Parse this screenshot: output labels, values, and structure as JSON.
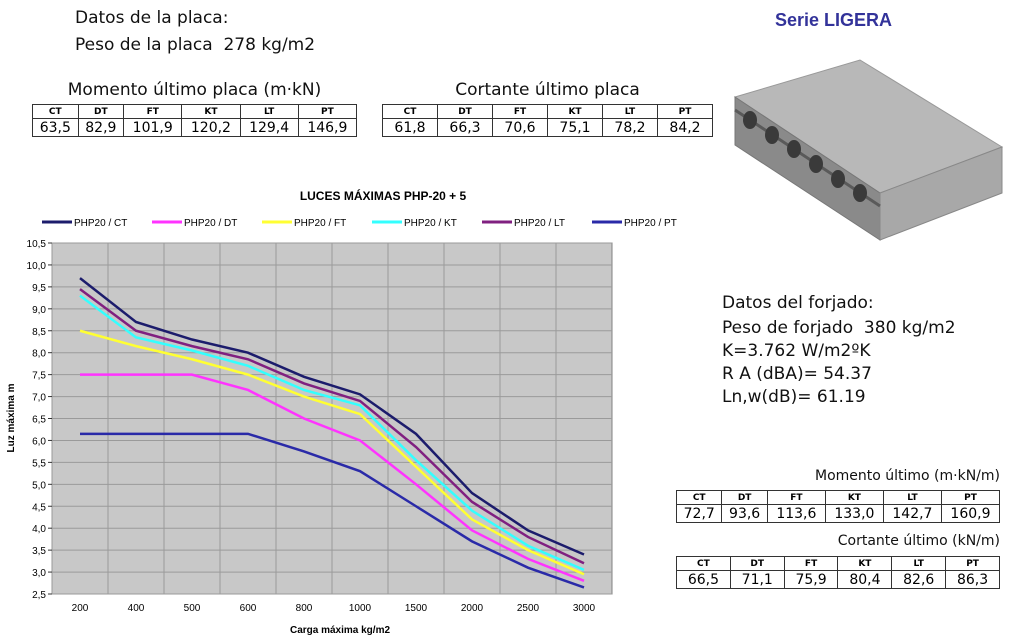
{
  "placa": {
    "title": "Datos de la placa:",
    "peso": "Peso de la placa  278 kg/m2"
  },
  "serie": "Serie LIGERA",
  "tables": [
    {
      "title": "Momento último placa (m·kN)",
      "headers": [
        "CT",
        "DT",
        "FT",
        "KT",
        "LT",
        "PT"
      ],
      "values": [
        "63,5",
        "82,9",
        "101,9",
        "120,2",
        "129,4",
        "146,9"
      ]
    },
    {
      "title": "Cortante último placa",
      "headers": [
        "CT",
        "DT",
        "FT",
        "KT",
        "LT",
        "PT"
      ],
      "values": [
        "61,8",
        "66,3",
        "70,6",
        "75,1",
        "78,2",
        "84,2"
      ]
    },
    {
      "title": "Momento último (m·kN/m)",
      "headers": [
        "CT",
        "DT",
        "FT",
        "KT",
        "LT",
        "PT"
      ],
      "values": [
        "72,7",
        "93,6",
        "113,6",
        "133,0",
        "142,7",
        "160,9"
      ]
    },
    {
      "title": "Cortante último (kN/m)",
      "headers": [
        "CT",
        "DT",
        "FT",
        "KT",
        "LT",
        "PT"
      ],
      "values": [
        "66,5",
        "71,1",
        "75,9",
        "80,4",
        "82,6",
        "86,3"
      ]
    }
  ],
  "forjado": {
    "title": "Datos del forjado:",
    "lines": [
      "Peso de forjado  380 kg/m2",
      "K=3.762 W/m2ºK",
      "R A (dBA)= 54.37",
      "Ln,w(dB)= 61.19"
    ]
  },
  "chart_data": {
    "type": "line",
    "title": "LUCES MÁXIMAS PHP-20 + 5",
    "x_label": "Carga máxima kg/m2",
    "y_label": "Luz máxima m",
    "categories": [
      "200",
      "400",
      "500",
      "600",
      "800",
      "1000",
      "1500",
      "2000",
      "2500",
      "3000"
    ],
    "series": [
      {
        "name": "PHP20 / CT",
        "color": "#1c1c6c",
        "values": [
          9.7,
          8.7,
          8.3,
          8.0,
          7.45,
          7.05,
          6.15,
          4.8,
          3.95,
          3.4
        ]
      },
      {
        "name": "PHP20 / DT",
        "color": "#ff33ff",
        "values": [
          7.5,
          7.5,
          7.5,
          7.15,
          6.5,
          6.0,
          5.0,
          3.95,
          3.3,
          2.8
        ]
      },
      {
        "name": "PHP20 / FT",
        "color": "#ffff33",
        "values": [
          8.5,
          8.15,
          7.85,
          7.5,
          7.0,
          6.6,
          5.4,
          4.2,
          3.5,
          2.95
        ]
      },
      {
        "name": "PHP20 / KT",
        "color": "#33ffff",
        "values": [
          9.3,
          8.35,
          8.05,
          7.7,
          7.15,
          6.8,
          5.55,
          4.4,
          3.6,
          3.05
        ]
      },
      {
        "name": "PHP20 / LT",
        "color": "#802080",
        "values": [
          9.45,
          8.5,
          8.15,
          7.85,
          7.3,
          6.9,
          5.85,
          4.6,
          3.8,
          3.2
        ]
      },
      {
        "name": "PHP20 / PT",
        "color": "#2a2aa8",
        "values": [
          6.15,
          6.15,
          6.15,
          6.15,
          5.75,
          5.3,
          4.5,
          3.7,
          3.1,
          2.65
        ]
      }
    ],
    "ylim": [
      2.5,
      10.5
    ],
    "yticks": [
      {
        "value": 2.5,
        "label": "2,5"
      },
      {
        "value": 3,
        "label": "3,0"
      },
      {
        "value": 3.5,
        "label": "3,5"
      },
      {
        "value": 4,
        "label": "4,0"
      },
      {
        "value": 4.5,
        "label": "4,5"
      },
      {
        "value": 5,
        "label": "5,0"
      },
      {
        "value": 5.5,
        "label": "5,5"
      },
      {
        "value": 6,
        "label": "6,0"
      },
      {
        "value": 6.5,
        "label": "6,5"
      },
      {
        "value": 7,
        "label": "7,0"
      },
      {
        "value": 7.5,
        "label": "7,5"
      },
      {
        "value": 8,
        "label": "8,0"
      },
      {
        "value": 8.5,
        "label": "8,5"
      },
      {
        "value": 9,
        "label": "9,0"
      },
      {
        "value": 9.5,
        "label": "9,5"
      },
      {
        "value": 10,
        "label": "10,0"
      },
      {
        "value": 10.5,
        "label": "10,5"
      }
    ],
    "grid": true
  }
}
